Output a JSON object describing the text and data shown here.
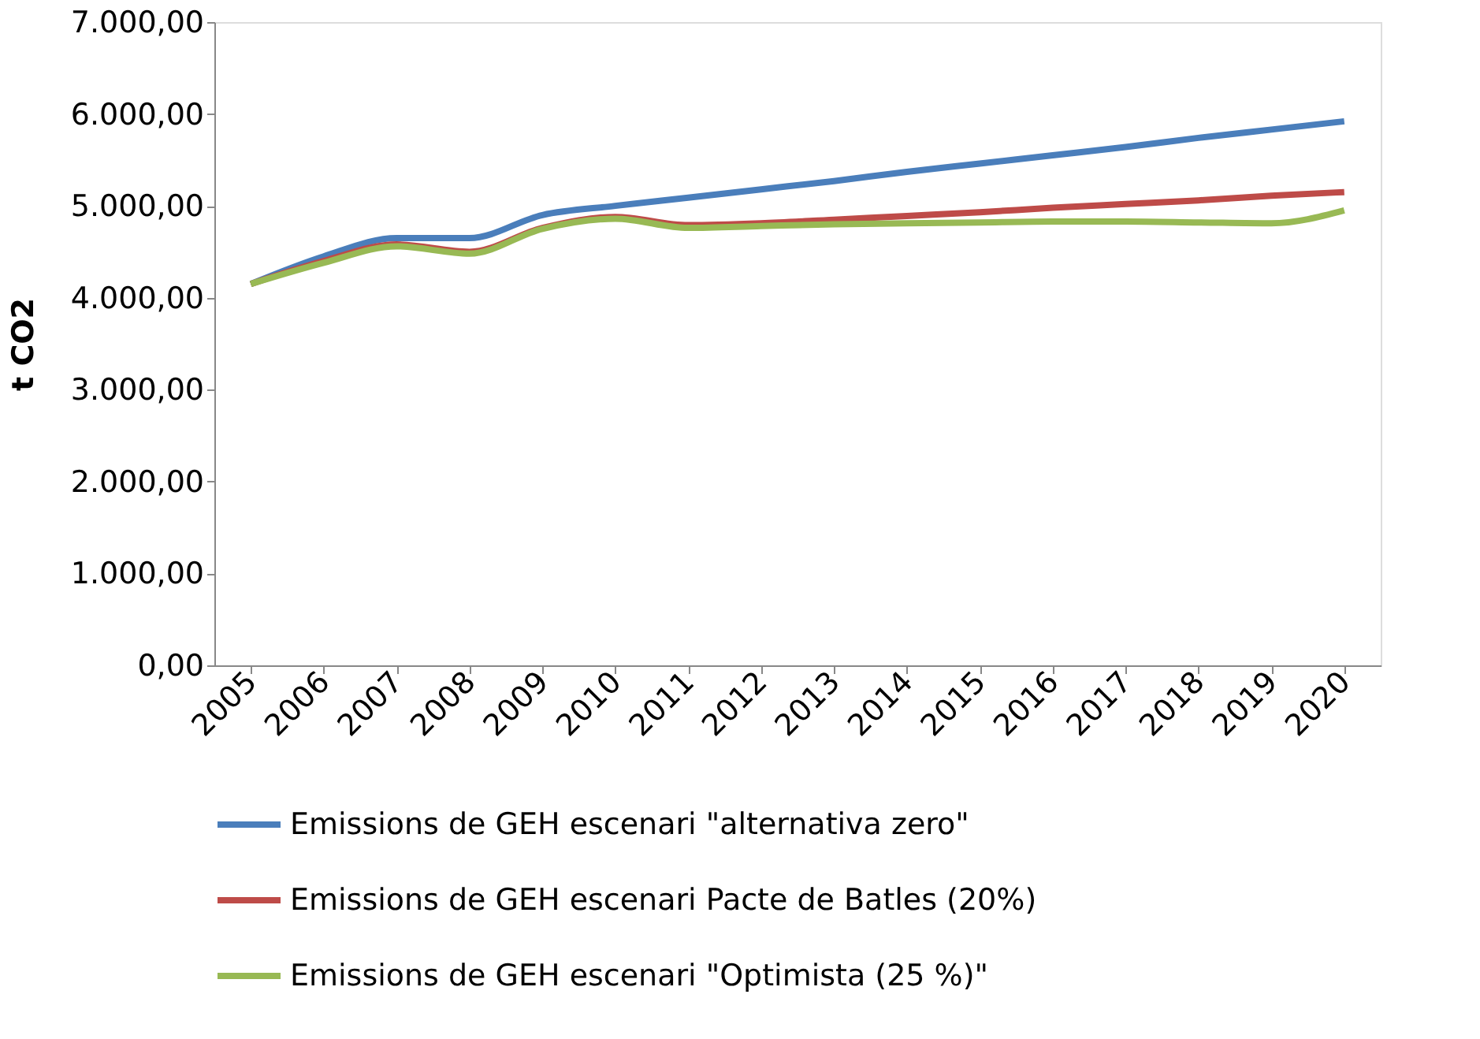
{
  "chart_data": {
    "type": "line",
    "ylabel": "t CO2",
    "categories": [
      "2005",
      "2006",
      "2007",
      "2008",
      "2009",
      "2010",
      "2011",
      "2012",
      "2013",
      "2014",
      "2015",
      "2016",
      "2017",
      "2018",
      "2019",
      "2020"
    ],
    "series": [
      {
        "name": "Emissions de GEH escenari \"alternativa zero\"",
        "color": "#4a7ebb",
        "values": [
          4150,
          4450,
          4650,
          4650,
          4900,
          5000,
          5090,
          5180,
          5270,
          5370,
          5460,
          5550,
          5640,
          5740,
          5830,
          5920
        ]
      },
      {
        "name": "Emissions de GEH escenari Pacte de Batles (20%)",
        "color": "#be4b48",
        "values": [
          4150,
          4400,
          4580,
          4500,
          4760,
          4880,
          4790,
          4810,
          4850,
          4890,
          4930,
          4980,
          5020,
          5060,
          5110,
          5150
        ]
      },
      {
        "name": "Emissions de GEH escenari \"Optimista (25 %)\"",
        "color": "#98b954",
        "values": [
          4150,
          4380,
          4560,
          4480,
          4750,
          4860,
          4760,
          4780,
          4800,
          4810,
          4820,
          4830,
          4830,
          4820,
          4810,
          4950
        ]
      }
    ],
    "ylim": [
      0,
      7000
    ],
    "yticks": [
      {
        "value": 0,
        "label": "0,00"
      },
      {
        "value": 1000,
        "label": "1.000,00"
      },
      {
        "value": 2000,
        "label": "2.000,00"
      },
      {
        "value": 3000,
        "label": "3.000,00"
      },
      {
        "value": 4000,
        "label": "4.000,00"
      },
      {
        "value": 5000,
        "label": "5.000,00"
      },
      {
        "value": 6000,
        "label": "6.000,00"
      },
      {
        "value": 7000,
        "label": "7.000,00"
      }
    ],
    "grid": false,
    "legend": "bottom",
    "marker": "none",
    "line_style": "solid"
  }
}
